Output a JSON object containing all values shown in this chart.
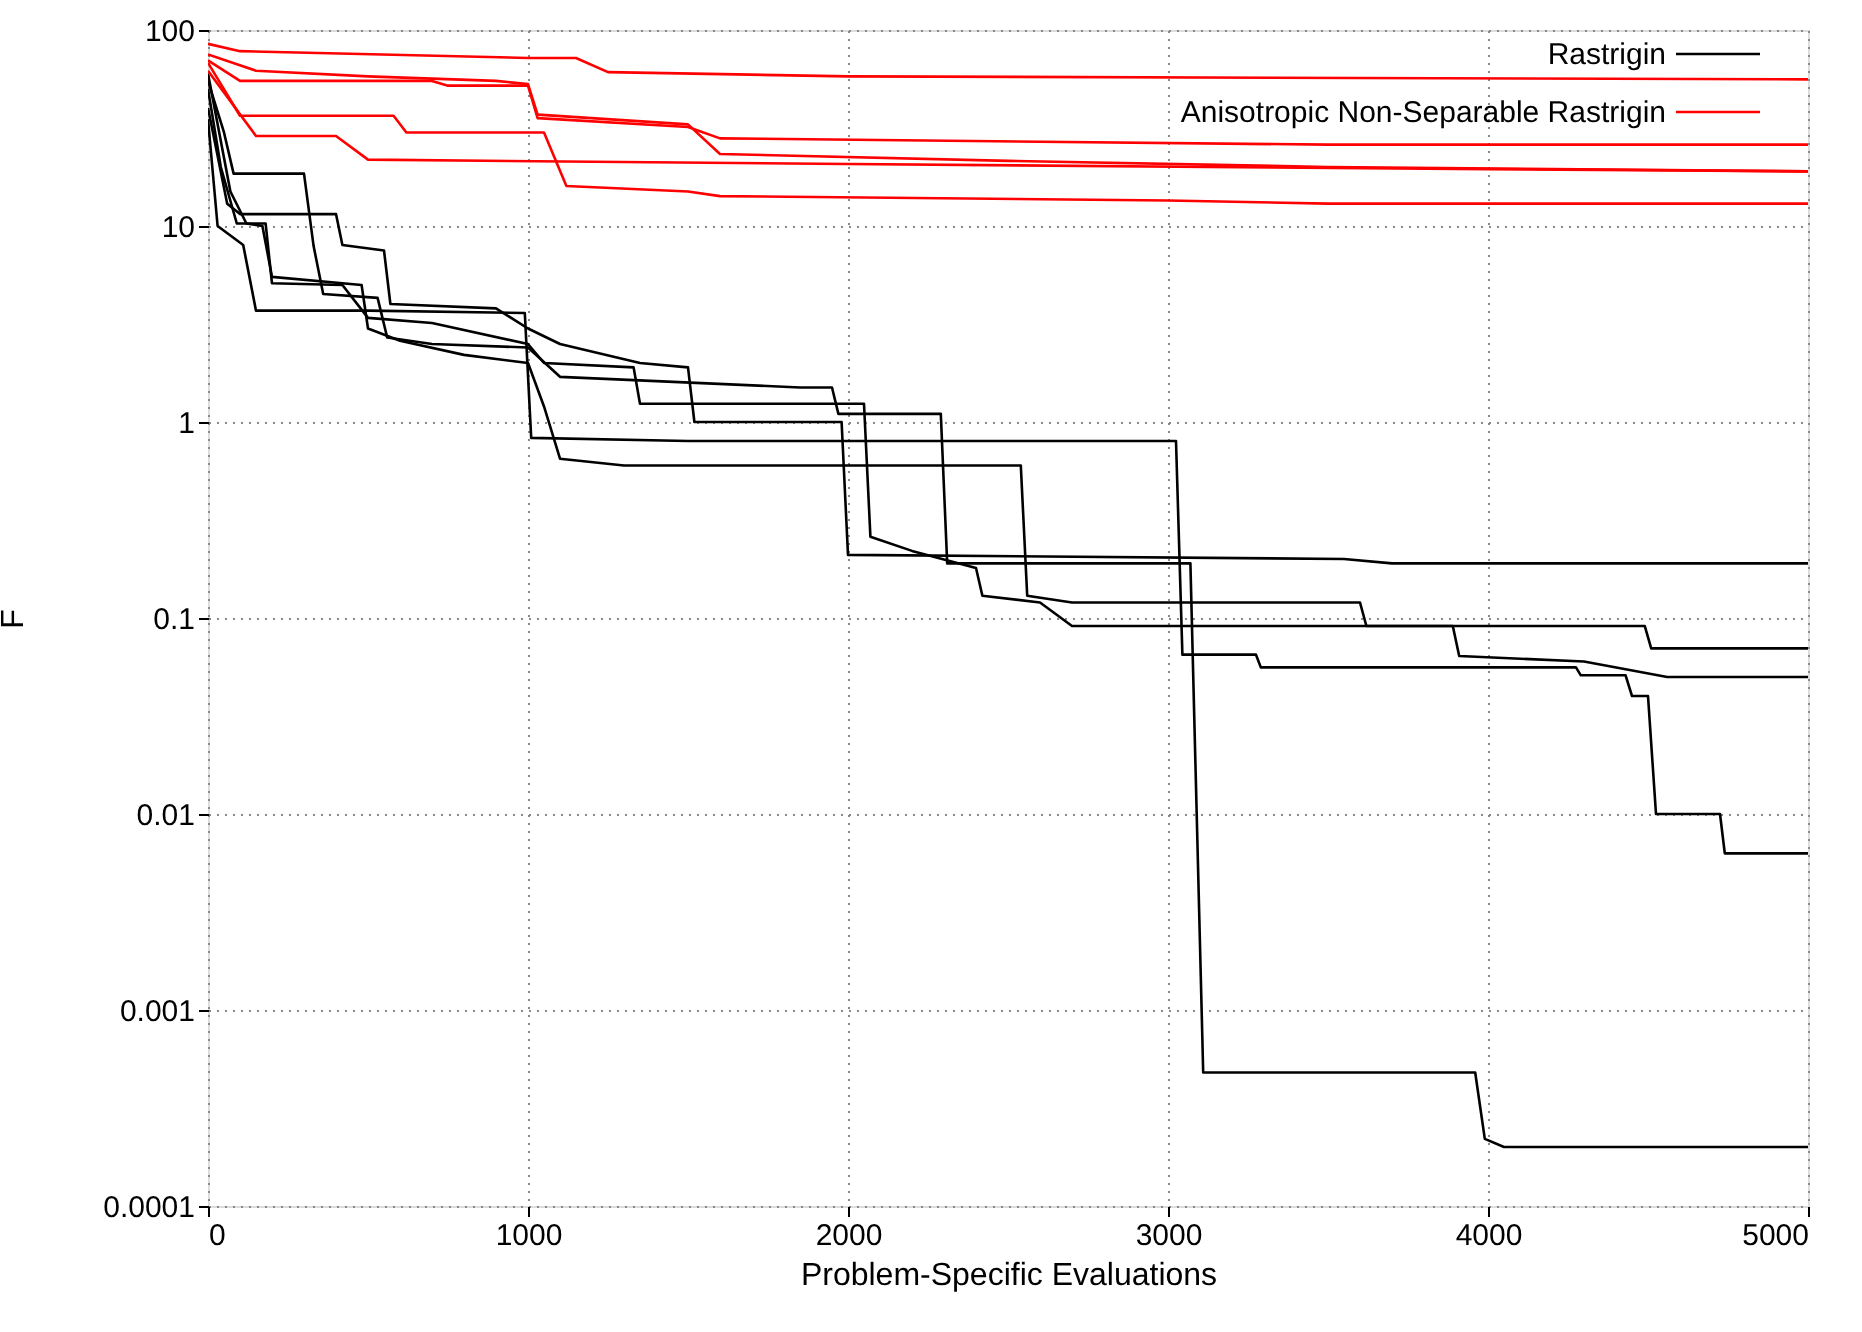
{
  "chart_data": {
    "type": "line",
    "xlabel": "Problem-Specific Evaluations",
    "ylabel": "F",
    "log": "y",
    "grid": true,
    "legend": "top right",
    "xlim": [
      0,
      5000
    ],
    "xticks": [
      0,
      1000,
      2000,
      3000,
      4000,
      5000
    ],
    "ylim": [
      0.0001,
      100
    ],
    "yticks": [
      0.0001,
      0.001,
      0.01,
      0.1,
      1,
      10,
      100
    ],
    "series": [
      {
        "name": "Rastrigin",
        "color": "#000000",
        "x": [
          0,
          60,
          100,
          400,
          420,
          550,
          570,
          900,
          1000,
          1100,
          1350,
          1500,
          1520,
          1980,
          2000,
          3550,
          3700,
          5000
        ],
        "values": [
          40,
          13,
          11.5,
          11.5,
          8,
          7.5,
          4,
          3.8,
          3,
          2.5,
          2,
          1.9,
          1,
          1,
          0.21,
          0.2,
          0.19,
          0.19
        ]
      },
      {
        "color": "#000000",
        "x": [
          0,
          50,
          80,
          300,
          330,
          360,
          530,
          560,
          700,
          1000,
          1100,
          1850,
          1950,
          1970,
          2290,
          2310,
          3070,
          3110,
          3960,
          3990,
          4050,
          5000
        ],
        "values": [
          55,
          30,
          18.5,
          18.5,
          7.9,
          4.5,
          4.3,
          2.7,
          2.5,
          2.4,
          1.7,
          1.5,
          1.5,
          1.1,
          1.1,
          0.19,
          0.19,
          0.00048,
          0.00048,
          0.00022,
          0.0002,
          0.0002
        ]
      },
      {
        "color": "#000000",
        "x": [
          0,
          40,
          90,
          180,
          200,
          420,
          500,
          700,
          1000,
          1050,
          1330,
          1350,
          2050,
          2070,
          2200,
          2400,
          2420,
          2600,
          2700,
          3890,
          3910,
          4300,
          4560,
          5000
        ],
        "values": [
          50,
          20,
          10.3,
          10.3,
          5.1,
          5,
          3.4,
          3.2,
          2.5,
          2,
          1.9,
          1.24,
          1.24,
          0.26,
          0.22,
          0.18,
          0.13,
          0.12,
          0.091,
          0.091,
          0.064,
          0.06,
          0.05,
          0.05
        ]
      },
      {
        "color": "#000000",
        "x": [
          0,
          70,
          120,
          170,
          200,
          480,
          500,
          600,
          800,
          1000,
          1050,
          1100,
          1300,
          2540,
          2560,
          2700,
          3600,
          3620,
          4490,
          4510,
          5000
        ],
        "values": [
          60,
          15,
          10.3,
          10,
          5.5,
          5,
          3,
          2.6,
          2.2,
          2,
          1.2,
          0.65,
          0.6,
          0.6,
          0.13,
          0.12,
          0.12,
          0.091,
          0.091,
          0.07,
          0.07
        ]
      },
      {
        "color": "#000000",
        "x": [
          0,
          30,
          110,
          150,
          500,
          990,
          1010,
          1500,
          3025,
          3045,
          3275,
          3290,
          4275,
          4290,
          4430,
          4450,
          4500,
          4525,
          4725,
          4740,
          5000
        ],
        "values": [
          35,
          10,
          8,
          3.7,
          3.7,
          3.6,
          0.83,
          0.8,
          0.8,
          0.065,
          0.065,
          0.056,
          0.056,
          0.051,
          0.051,
          0.04,
          0.04,
          0.01,
          0.01,
          0.0063,
          0.0063
        ]
      },
      {
        "name": "Anisotropic Non-Separable Rastrigin",
        "color": "#ff0000",
        "x": [
          0,
          100,
          1000,
          1150,
          1250,
          2000,
          5000
        ],
        "values": [
          85,
          78,
          72,
          72,
          61,
          58,
          56
        ]
      },
      {
        "color": "#ff0000",
        "x": [
          0,
          100,
          700,
          750,
          1000,
          1030,
          1500,
          1600,
          3500,
          5000
        ],
        "values": [
          70,
          55,
          55,
          52,
          52,
          35.5,
          32,
          28,
          26,
          26
        ]
      },
      {
        "color": "#ff0000",
        "x": [
          0,
          150,
          500,
          900,
          1000,
          1030,
          1500,
          1600,
          2500,
          3500,
          5000
        ],
        "values": [
          75,
          62,
          58,
          55,
          53,
          37,
          33,
          23.3,
          21.5,
          20,
          19
        ]
      },
      {
        "color": "#ff0000",
        "x": [
          0,
          100,
          580,
          620,
          1050,
          1120,
          1500,
          1600,
          3000,
          3500,
          5000
        ],
        "values": [
          68,
          36.5,
          36.5,
          30,
          30,
          16,
          15,
          14.2,
          13.5,
          13,
          13
        ]
      },
      {
        "color": "#ff0000",
        "x": [
          0,
          150,
          400,
          500,
          2000,
          4000,
          5000
        ],
        "values": [
          62,
          28.8,
          28.8,
          21.8,
          20.7,
          19.5,
          19
        ]
      }
    ]
  }
}
